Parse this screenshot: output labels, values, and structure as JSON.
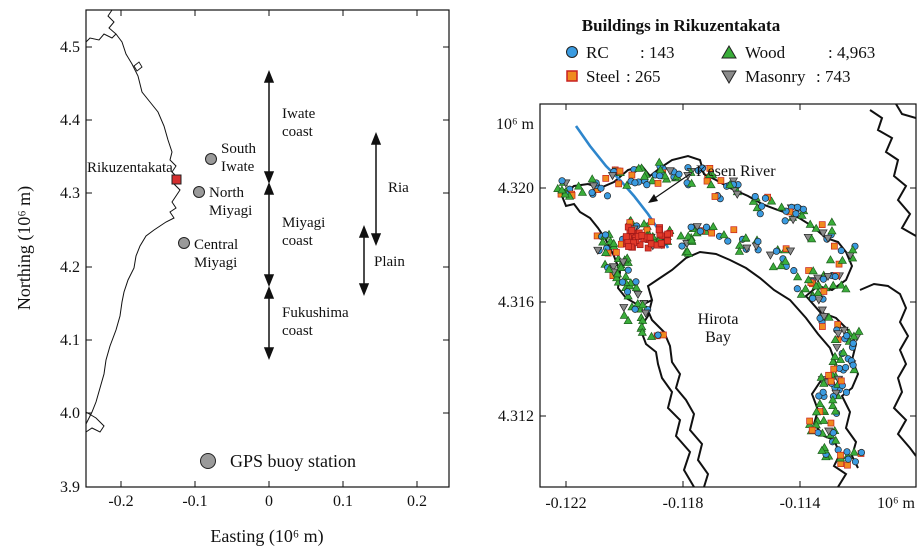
{
  "left_map": {
    "y_axis_label": "Northing (10⁶ m)",
    "x_axis_label": "Easting (10⁶ m)",
    "y_ticks": [
      "4.5",
      "4.4",
      "4.3",
      "4.2",
      "4.1",
      "4.0",
      "3.9"
    ],
    "x_ticks": [
      "-0.2",
      "-0.1",
      "0",
      "0.1",
      "0.2"
    ],
    "stations": [
      {
        "label_lines": [
          "South",
          "Iwate"
        ],
        "easting": -0.079,
        "northing": 4.347
      },
      {
        "label_lines": [
          "North",
          "Miyagi"
        ],
        "easting": -0.095,
        "northing": 4.301
      },
      {
        "label_lines": [
          "Central",
          "Miyagi"
        ],
        "easting": -0.112,
        "northing": 4.232
      }
    ],
    "city": {
      "label": "Rikuzentakata",
      "easting": -0.122,
      "northing": 4.318
    },
    "coast_segments": [
      {
        "label_lines": [
          "Iwate",
          "coast"
        ]
      },
      {
        "label_lines": [
          "Miyagi",
          "coast"
        ]
      },
      {
        "label_lines": [
          "Fukushima",
          "coast"
        ]
      }
    ],
    "coast_types": [
      {
        "label": "Ria"
      },
      {
        "label": "Plain"
      }
    ],
    "legend_label": "GPS buoy station",
    "colors": {
      "station": "#9a9a9a",
      "city": "#d42f2f"
    }
  },
  "right_map": {
    "title": "Buildings in Rikuzentakata",
    "legend": [
      {
        "label": "RC",
        "count": ": 143",
        "marker": "circle",
        "color": "#3a9be0"
      },
      {
        "label": "Wood",
        "count": ": 4,963",
        "marker": "triangle-up",
        "color": "#3aad3a"
      },
      {
        "label": "Steel",
        "count": ": 265",
        "marker": "square",
        "color": "#f08a1e"
      },
      {
        "label": "Masonry",
        "count": ": 743",
        "marker": "triangle-down",
        "color": "#8a8a8a"
      }
    ],
    "y_unit": "10⁶ m",
    "x_unit": "10⁶ m",
    "y_ticks": [
      "4.320",
      "4.316",
      "4.312"
    ],
    "x_ticks": [
      "-0.122",
      "-0.118",
      "-0.114"
    ],
    "river_label": "Kesen River",
    "bay_label_lines": [
      "Hirota",
      "Bay"
    ],
    "colors": {
      "river": "#2e86cc",
      "coast": "#111111"
    }
  }
}
